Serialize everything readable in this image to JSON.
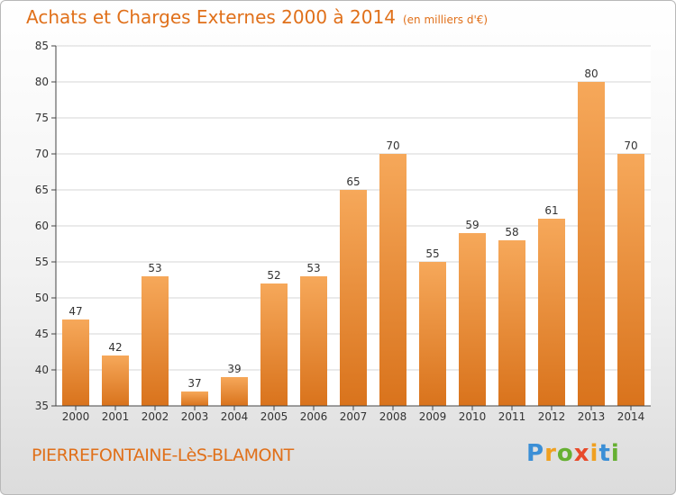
{
  "title": "Achats et Charges Externes 2000 à 2014",
  "unit": "(en milliers d'€)",
  "commune": "PIERREFONTAINE-LèS-BLAMONT",
  "logo": {
    "text": "Proxiti",
    "letters": [
      "P",
      "r",
      "o",
      "x",
      "i",
      "t",
      "i"
    ],
    "colors": [
      "#3b8fd6",
      "#f0a020",
      "#66b032",
      "#e84a2a",
      "#f0a020",
      "#3b8fd6",
      "#66b032"
    ]
  },
  "colors": {
    "accent": "#e0701a",
    "bar_top": "#f6a85a",
    "bar_bottom": "#d9731c"
  },
  "chart_data": {
    "type": "bar",
    "categories": [
      "2000",
      "2001",
      "2002",
      "2003",
      "2004",
      "2005",
      "2006",
      "2007",
      "2008",
      "2009",
      "2010",
      "2011",
      "2012",
      "2013",
      "2014"
    ],
    "values": [
      47,
      42,
      53,
      37,
      39,
      52,
      53,
      65,
      70,
      55,
      59,
      58,
      61,
      80,
      70
    ],
    "ylim": [
      35,
      85
    ],
    "yticks": [
      35,
      40,
      45,
      50,
      55,
      60,
      65,
      70,
      75,
      80,
      85
    ],
    "grid": true
  }
}
